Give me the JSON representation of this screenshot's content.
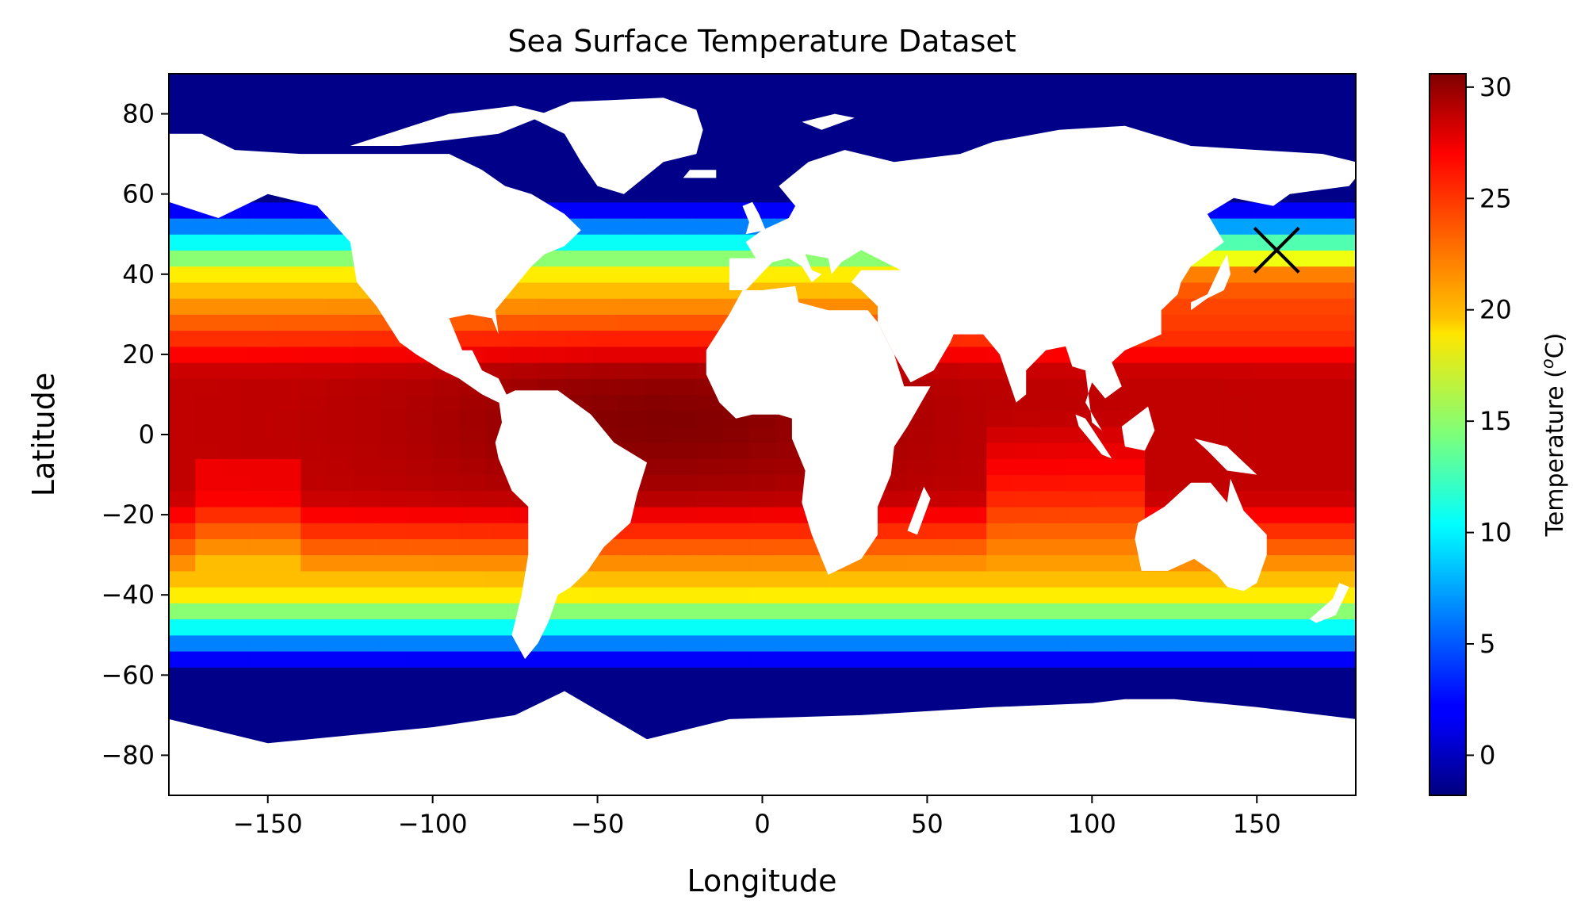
{
  "chart_data": {
    "type": "heatmap",
    "title": "Sea Surface Temperature Dataset",
    "xlabel": "Longitude",
    "ylabel": "Latitude",
    "xlim": [
      -180,
      180
    ],
    "ylim": [
      -90,
      90
    ],
    "x_ticks": [
      -150,
      -100,
      -50,
      0,
      50,
      100,
      150
    ],
    "y_ticks": [
      -80,
      -60,
      -40,
      -20,
      0,
      20,
      40,
      60,
      80
    ],
    "x_tick_labels": [
      "−150",
      "−100",
      "−50",
      "0",
      "50",
      "100",
      "150"
    ],
    "y_tick_labels": [
      "−80",
      "−60",
      "−40",
      "−20",
      "0",
      "20",
      "40",
      "60",
      "80"
    ],
    "colorbar": {
      "label": "Temperature (",
      "label_sup": "o",
      "label_tail": "C)",
      "range": [
        -1.8,
        30.6
      ],
      "ticks": [
        0,
        5,
        10,
        15,
        20,
        25,
        30
      ],
      "tick_labels": [
        "0",
        "5",
        "10",
        "15",
        "20",
        "25",
        "30"
      ],
      "colormap": "jet"
    },
    "marker": {
      "shape": "x",
      "lon": 156,
      "lat": 46,
      "color": "#000000"
    },
    "land_color": "#ffffff",
    "grid": false
  }
}
